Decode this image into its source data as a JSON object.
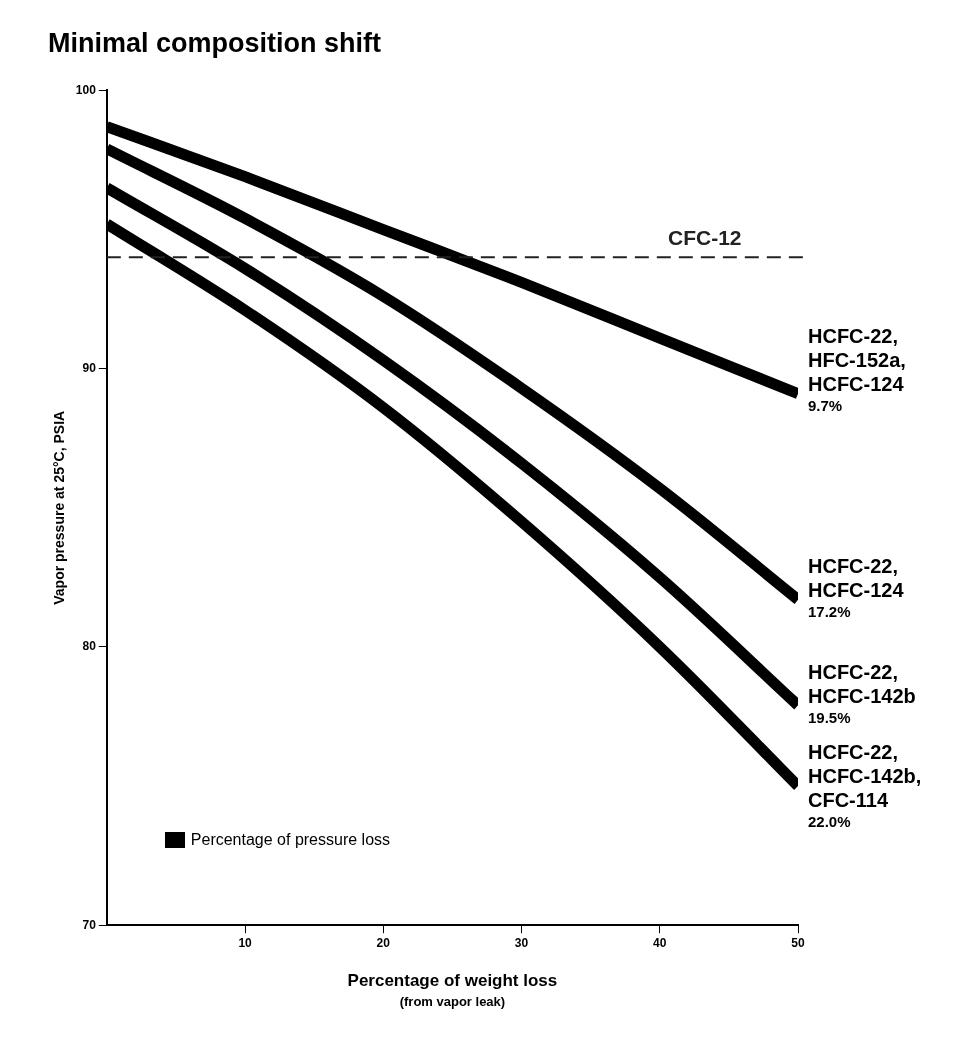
{
  "chart_data": {
    "type": "line",
    "title": "Minimal composition shift",
    "xlabel": "Percentage of weight loss",
    "ylabel": "Vapor pressure at 25°C, PSIA",
    "legend_title": "Percentage of pressure loss",
    "xlim": [
      0,
      50
    ],
    "xticks": [
      10,
      20,
      30,
      40,
      50
    ],
    "ylim": [
      70,
      100
    ],
    "yticks": [
      70,
      80,
      90,
      100
    ],
    "grid": false,
    "line_style": "solid",
    "x": [
      0,
      10,
      20,
      30,
      40,
      50
    ],
    "series": [
      {
        "name": "HCFC-22, HFC-152a, HCFC-124",
        "color": "#000000",
        "values": [
          98.7,
          96.9,
          95.0,
          93.1,
          91.1,
          89.1
        ]
      },
      {
        "name": "HCFC-22, HCFC-124",
        "color": "#000000",
        "values": [
          97.9,
          95.4,
          92.6,
          89.3,
          85.7,
          81.7
        ]
      },
      {
        "name": "HCFC-22, HCFC-142b",
        "color": "#000000",
        "values": [
          96.5,
          93.6,
          90.3,
          86.6,
          82.5,
          77.9
        ]
      },
      {
        "name": "HCFC-22, HCFC-142b, CFC-114",
        "color": "#000000",
        "values": [
          95.2,
          92.1,
          88.6,
          84.5,
          80.0,
          75.0
        ]
      }
    ],
    "ref_lines": [
      {
        "axis": "y",
        "value": 94.0,
        "label": "CFC-12",
        "color": "#222222",
        "line_style": "dashed"
      }
    ],
    "annotations": [
      "(from vapor leak)",
      "9.7%",
      "17.2%",
      "19.5%",
      "22.0%"
    ]
  }
}
